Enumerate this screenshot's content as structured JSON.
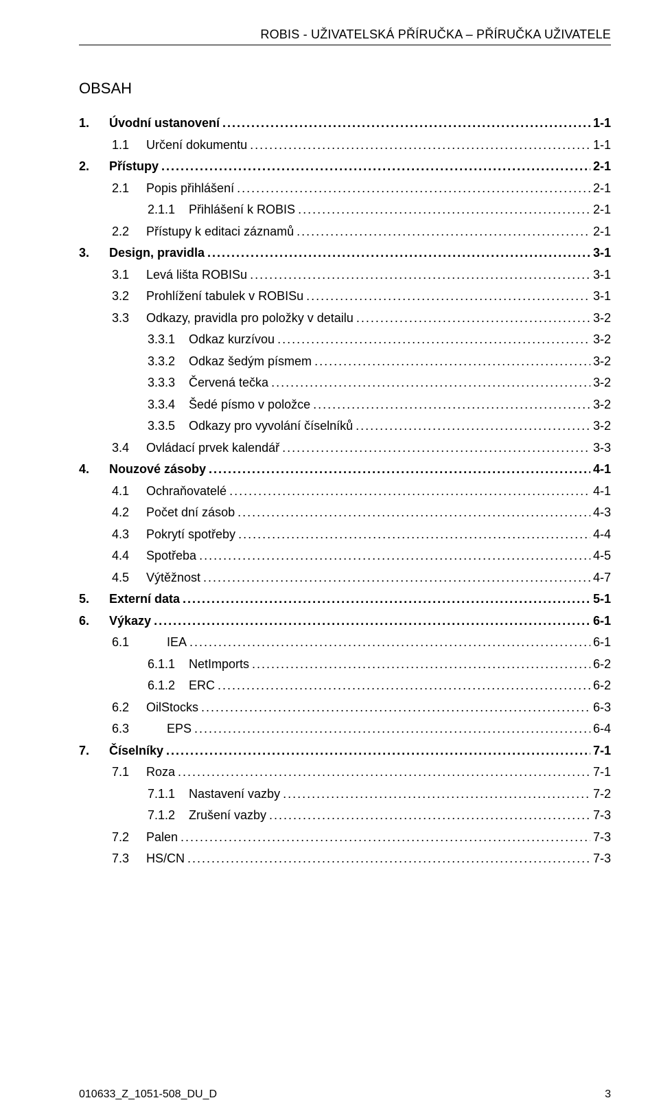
{
  "header": {
    "title": "ROBIS - UŽIVATELSKÁ PŘÍRUČKA – PŘÍRUČKA UŽIVATELE"
  },
  "section_title": "OBSAH",
  "toc": [
    {
      "num": "1.",
      "label": "Úvodní ustanovení",
      "page": "1-1",
      "level": 0,
      "bold": true
    },
    {
      "num": "1.1",
      "label": "Určení dokumentu",
      "page": "1-1",
      "level": 1,
      "bold": false
    },
    {
      "num": "2.",
      "label": "Přístupy",
      "page": "2-1",
      "level": 0,
      "bold": true
    },
    {
      "num": "2.1",
      "label": "Popis přihlášení",
      "page": "2-1",
      "level": 1,
      "bold": false
    },
    {
      "num": "2.1.1",
      "label": "Přihlášení k ROBIS",
      "page": "2-1",
      "level": 2,
      "bold": false
    },
    {
      "num": "2.2",
      "label": "Přístupy k editaci záznamů",
      "page": "2-1",
      "level": 1,
      "bold": false
    },
    {
      "num": "3.",
      "label": "Design, pravidla",
      "page": "3-1",
      "level": 0,
      "bold": true
    },
    {
      "num": "3.1",
      "label": "Levá lišta ROBISu",
      "page": "3-1",
      "level": 1,
      "bold": false
    },
    {
      "num": "3.2",
      "label": "Prohlížení tabulek v ROBISu",
      "page": "3-1",
      "level": 1,
      "bold": false
    },
    {
      "num": "3.3",
      "label": "Odkazy, pravidla pro položky v detailu",
      "page": "3-2",
      "level": 1,
      "bold": false
    },
    {
      "num": "3.3.1",
      "label": "Odkaz kurzívou",
      "page": "3-2",
      "level": 2,
      "bold": false
    },
    {
      "num": "3.3.2",
      "label": "Odkaz šedým písmem",
      "page": "3-2",
      "level": 2,
      "bold": false
    },
    {
      "num": "3.3.3",
      "label": "Červená tečka",
      "page": "3-2",
      "level": 2,
      "bold": false
    },
    {
      "num": "3.3.4",
      "label": "Šedé písmo v položce",
      "page": "3-2",
      "level": 2,
      "bold": false
    },
    {
      "num": "3.3.5",
      "label": "Odkazy pro vyvolání číselníků",
      "page": "3-2",
      "level": 2,
      "bold": false
    },
    {
      "num": "3.4",
      "label": "Ovládací prvek kalendář",
      "page": "3-3",
      "level": 1,
      "bold": false
    },
    {
      "num": "4.",
      "label": "Nouzové zásoby",
      "page": "4-1",
      "level": 0,
      "bold": true
    },
    {
      "num": "4.1",
      "label": "Ochraňovatelé",
      "page": "4-1",
      "level": 1,
      "bold": false
    },
    {
      "num": "4.2",
      "label": "Počet dní zásob",
      "page": "4-3",
      "level": 1,
      "bold": false
    },
    {
      "num": "4.3",
      "label": "Pokrytí spotřeby",
      "page": "4-4",
      "level": 1,
      "bold": false
    },
    {
      "num": "4.4",
      "label": "Spotřeba",
      "page": "4-5",
      "level": 1,
      "bold": false
    },
    {
      "num": "4.5",
      "label": "Výtěžnost",
      "page": "4-7",
      "level": 1,
      "bold": false
    },
    {
      "num": "5.",
      "label": "Externí data",
      "page": "5-1",
      "level": 0,
      "bold": true
    },
    {
      "num": "6.",
      "label": "Výkazy",
      "page": "6-1",
      "level": 0,
      "bold": true
    },
    {
      "num": "6.1",
      "label": "IEA",
      "page": "6-1",
      "level": 1,
      "bold": false,
      "wide": true
    },
    {
      "num": "6.1.1",
      "label": "NetImports",
      "page": "6-2",
      "level": 2,
      "bold": false
    },
    {
      "num": "6.1.2",
      "label": "ERC",
      "page": "6-2",
      "level": 2,
      "bold": false
    },
    {
      "num": "6.2",
      "label": "OilStocks",
      "page": "6-3",
      "level": 1,
      "bold": false
    },
    {
      "num": "6.3",
      "label": "EPS",
      "page": "6-4",
      "level": 1,
      "bold": false,
      "wide": true
    },
    {
      "num": "7.",
      "label": "Číselníky",
      "page": "7-1",
      "level": 0,
      "bold": true
    },
    {
      "num": "7.1",
      "label": "Roza",
      "page": "7-1",
      "level": 1,
      "bold": false
    },
    {
      "num": "7.1.1",
      "label": "Nastavení vazby",
      "page": "7-2",
      "level": 2,
      "bold": false
    },
    {
      "num": "7.1.2",
      "label": "Zrušení vazby",
      "page": "7-3",
      "level": 2,
      "bold": false
    },
    {
      "num": "7.2",
      "label": "Palen",
      "page": "7-3",
      "level": 1,
      "bold": false
    },
    {
      "num": "7.3",
      "label": "HS/CN",
      "page": "7-3",
      "level": 1,
      "bold": false
    }
  ],
  "footer": {
    "doc_code": "010633_Z_1051-508_DU_D",
    "page_number": "3"
  },
  "style": {
    "font_family": "Arial",
    "body_font_size_pt": 14,
    "text_color": "#000000",
    "background_color": "#ffffff",
    "rule_color": "#000000"
  }
}
